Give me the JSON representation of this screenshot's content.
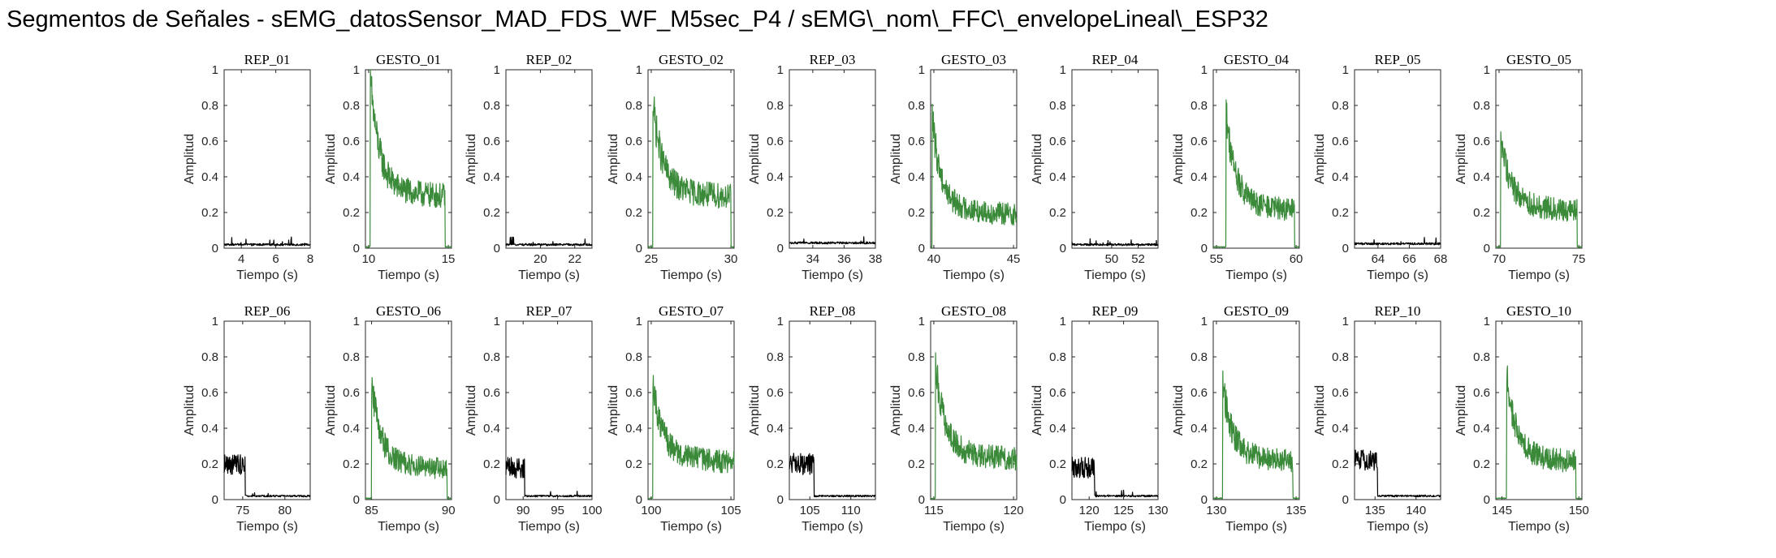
{
  "title": "Segmentos de Señales - sEMG_datosSensor_MAD_FDS_WF_M5sec_P4 / sEMG\\_nom\\_FFC\\_envelopeLineal\\_ESP32",
  "colors": {
    "rep": "#000000",
    "gesto": "#3a8a3a",
    "axis": "#262626"
  },
  "chart_data": [
    {
      "type": "line",
      "title": "REP_01",
      "xlabel": "Tiempo (s)",
      "ylabel": "Amplitud",
      "xlim": [
        3,
        8
      ],
      "ylim": [
        0,
        1
      ],
      "xticks": [
        4,
        6,
        8
      ],
      "yticks": [
        0,
        0.2,
        0.4,
        0.6,
        0.8,
        1
      ],
      "grid": false,
      "color": "rep",
      "profile": "rest",
      "level": 0.02
    },
    {
      "type": "line",
      "title": "GESTO_01",
      "xlabel": "Tiempo (s)",
      "ylabel": "Amplitud",
      "xlim": [
        9.8,
        15.2
      ],
      "ylim": [
        0,
        1
      ],
      "xticks": [
        10,
        15
      ],
      "yticks": [
        0,
        0.2,
        0.4,
        0.6,
        0.8,
        1
      ],
      "grid": false,
      "color": "gesto",
      "profile": "gesture",
      "onset": 10.1,
      "offset": 14.8,
      "peak": 0.98,
      "plateau": 0.28
    },
    {
      "type": "line",
      "title": "REP_02",
      "xlabel": "Tiempo (s)",
      "ylabel": "Amplitud",
      "xlim": [
        18,
        23
      ],
      "ylim": [
        0,
        1
      ],
      "xticks": [
        20,
        22
      ],
      "yticks": [
        0,
        0.2,
        0.4,
        0.6,
        0.8,
        1
      ],
      "grid": false,
      "color": "rep",
      "profile": "rest",
      "level": 0.02
    },
    {
      "type": "line",
      "title": "GESTO_02",
      "xlabel": "Tiempo (s)",
      "ylabel": "Amplitud",
      "xlim": [
        24.8,
        30.2
      ],
      "ylim": [
        0,
        1
      ],
      "xticks": [
        25,
        30
      ],
      "yticks": [
        0,
        0.2,
        0.4,
        0.6,
        0.8,
        1
      ],
      "grid": false,
      "color": "gesto",
      "profile": "gesture",
      "onset": 25.1,
      "offset": 30.0,
      "peak": 0.82,
      "plateau": 0.28
    },
    {
      "type": "line",
      "title": "REP_03",
      "xlabel": "Tiempo (s)",
      "ylabel": "Amplitud",
      "xlim": [
        32.5,
        38
      ],
      "ylim": [
        0,
        1
      ],
      "xticks": [
        34,
        36,
        38
      ],
      "yticks": [
        0,
        0.2,
        0.4,
        0.6,
        0.8,
        1
      ],
      "grid": false,
      "color": "rep",
      "profile": "rest",
      "level": 0.03
    },
    {
      "type": "line",
      "title": "GESTO_03",
      "xlabel": "Tiempo (s)",
      "ylabel": "Amplitud",
      "xlim": [
        39.8,
        45.2
      ],
      "ylim": [
        0,
        1
      ],
      "xticks": [
        40,
        45
      ],
      "yticks": [
        0,
        0.2,
        0.4,
        0.6,
        0.8,
        1
      ],
      "grid": false,
      "color": "gesto",
      "profile": "gesture",
      "onset": 39.9,
      "offset": 45.2,
      "peak": 0.72,
      "plateau": 0.18
    },
    {
      "type": "line",
      "title": "REP_04",
      "xlabel": "Tiempo (s)",
      "ylabel": "Amplitud",
      "xlim": [
        47,
        53.5
      ],
      "ylim": [
        0,
        1
      ],
      "xticks": [
        50,
        52
      ],
      "yticks": [
        0,
        0.2,
        0.4,
        0.6,
        0.8,
        1
      ],
      "grid": false,
      "color": "rep",
      "profile": "rest",
      "level": 0.02
    },
    {
      "type": "line",
      "title": "GESTO_04",
      "xlabel": "Tiempo (s)",
      "ylabel": "Amplitud",
      "xlim": [
        54.8,
        60.2
      ],
      "ylim": [
        0,
        1
      ],
      "xticks": [
        55,
        60
      ],
      "yticks": [
        0,
        0.2,
        0.4,
        0.6,
        0.8,
        1
      ],
      "grid": false,
      "color": "gesto",
      "profile": "gesture",
      "onset": 55.6,
      "offset": 59.9,
      "peak": 0.77,
      "plateau": 0.2
    },
    {
      "type": "line",
      "title": "REP_05",
      "xlabel": "Tiempo (s)",
      "ylabel": "Amplitud",
      "xlim": [
        62.5,
        68
      ],
      "ylim": [
        0,
        1
      ],
      "xticks": [
        64,
        66,
        68
      ],
      "yticks": [
        0,
        0.2,
        0.4,
        0.6,
        0.8,
        1
      ],
      "grid": false,
      "color": "rep",
      "profile": "rest",
      "level": 0.025
    },
    {
      "type": "line",
      "title": "GESTO_05",
      "xlabel": "Tiempo (s)",
      "ylabel": "Amplitud",
      "xlim": [
        69.8,
        75.2
      ],
      "ylim": [
        0,
        1
      ],
      "xticks": [
        70,
        75
      ],
      "yticks": [
        0,
        0.2,
        0.4,
        0.6,
        0.8,
        1
      ],
      "grid": false,
      "color": "gesto",
      "profile": "gesture",
      "onset": 70.1,
      "offset": 74.9,
      "peak": 0.63,
      "plateau": 0.2
    },
    {
      "type": "line",
      "title": "REP_06",
      "xlabel": "Tiempo (s)",
      "ylabel": "Amplitud",
      "xlim": [
        72.8,
        83
      ],
      "ylim": [
        0,
        1
      ],
      "xticks": [
        75,
        80
      ],
      "yticks": [
        0,
        0.2,
        0.4,
        0.6,
        0.8,
        1
      ],
      "grid": false,
      "color": "rep",
      "profile": "rest_active",
      "active_end": 75.3,
      "active_level": 0.2,
      "level": 0.02
    },
    {
      "type": "line",
      "title": "GESTO_06",
      "xlabel": "Tiempo (s)",
      "ylabel": "Amplitud",
      "xlim": [
        84.6,
        90.2
      ],
      "ylim": [
        0,
        1
      ],
      "xticks": [
        85,
        90
      ],
      "yticks": [
        0,
        0.2,
        0.4,
        0.6,
        0.8,
        1
      ],
      "grid": false,
      "color": "gesto",
      "profile": "gesture",
      "onset": 85.0,
      "offset": 89.9,
      "peak": 0.66,
      "plateau": 0.16
    },
    {
      "type": "line",
      "title": "REP_07",
      "xlabel": "Tiempo (s)",
      "ylabel": "Amplitud",
      "xlim": [
        87.5,
        100
      ],
      "ylim": [
        0,
        1
      ],
      "xticks": [
        90,
        95,
        100
      ],
      "yticks": [
        0,
        0.2,
        0.4,
        0.6,
        0.8,
        1
      ],
      "grid": false,
      "color": "rep",
      "profile": "rest_active",
      "active_end": 90.2,
      "active_level": 0.18,
      "level": 0.02
    },
    {
      "type": "line",
      "title": "GESTO_07",
      "xlabel": "Tiempo (s)",
      "ylabel": "Amplitud",
      "xlim": [
        99.8,
        105.2
      ],
      "ylim": [
        0,
        1
      ],
      "xticks": [
        100,
        105
      ],
      "yticks": [
        0,
        0.2,
        0.4,
        0.6,
        0.8,
        1
      ],
      "grid": false,
      "color": "gesto",
      "profile": "gesture",
      "onset": 100.1,
      "offset": 105.2,
      "peak": 0.64,
      "plateau": 0.2
    },
    {
      "type": "line",
      "title": "REP_08",
      "xlabel": "Tiempo (s)",
      "ylabel": "Amplitud",
      "xlim": [
        102.5,
        113
      ],
      "ylim": [
        0,
        1
      ],
      "xticks": [
        105,
        110
      ],
      "yticks": [
        0,
        0.2,
        0.4,
        0.6,
        0.8,
        1
      ],
      "grid": false,
      "color": "rep",
      "profile": "rest_active",
      "active_end": 105.5,
      "active_level": 0.2,
      "level": 0.02
    },
    {
      "type": "line",
      "title": "GESTO_08",
      "xlabel": "Tiempo (s)",
      "ylabel": "Amplitud",
      "xlim": [
        114.8,
        120.2
      ],
      "ylim": [
        0,
        1
      ],
      "xticks": [
        115,
        120
      ],
      "yticks": [
        0,
        0.2,
        0.4,
        0.6,
        0.8,
        1
      ],
      "grid": false,
      "color": "gesto",
      "profile": "gesture",
      "onset": 115.1,
      "offset": 120.2,
      "peak": 0.76,
      "plateau": 0.22
    },
    {
      "type": "line",
      "title": "REP_09",
      "xlabel": "Tiempo (s)",
      "ylabel": "Amplitud",
      "xlim": [
        117.5,
        130
      ],
      "ylim": [
        0,
        1
      ],
      "xticks": [
        120,
        125,
        130
      ],
      "yticks": [
        0,
        0.2,
        0.4,
        0.6,
        0.8,
        1
      ],
      "grid": false,
      "color": "rep",
      "profile": "rest_active",
      "active_end": 120.8,
      "active_level": 0.18,
      "level": 0.02
    },
    {
      "type": "line",
      "title": "GESTO_09",
      "xlabel": "Tiempo (s)",
      "ylabel": "Amplitud",
      "xlim": [
        129.8,
        135.2
      ],
      "ylim": [
        0,
        1
      ],
      "xticks": [
        130,
        135
      ],
      "yticks": [
        0,
        0.2,
        0.4,
        0.6,
        0.8,
        1
      ],
      "grid": false,
      "color": "gesto",
      "profile": "gesture",
      "onset": 130.4,
      "offset": 134.8,
      "peak": 0.64,
      "plateau": 0.2
    },
    {
      "type": "line",
      "title": "REP_10",
      "xlabel": "Tiempo (s)",
      "ylabel": "Amplitud",
      "xlim": [
        132.5,
        143
      ],
      "ylim": [
        0,
        1
      ],
      "xticks": [
        135,
        140
      ],
      "yticks": [
        0,
        0.2,
        0.4,
        0.6,
        0.8,
        1
      ],
      "grid": false,
      "color": "rep",
      "profile": "rest_active",
      "active_end": 135.3,
      "active_level": 0.22,
      "level": 0.02
    },
    {
      "type": "line",
      "title": "GESTO_10",
      "xlabel": "Tiempo (s)",
      "ylabel": "Amplitud",
      "xlim": [
        144.6,
        150.2
      ],
      "ylim": [
        0,
        1
      ],
      "xticks": [
        145,
        150
      ],
      "yticks": [
        0,
        0.2,
        0.4,
        0.6,
        0.8,
        1
      ],
      "grid": false,
      "color": "gesto",
      "profile": "gesture",
      "onset": 145.3,
      "offset": 149.8,
      "peak": 0.7,
      "plateau": 0.2
    }
  ]
}
